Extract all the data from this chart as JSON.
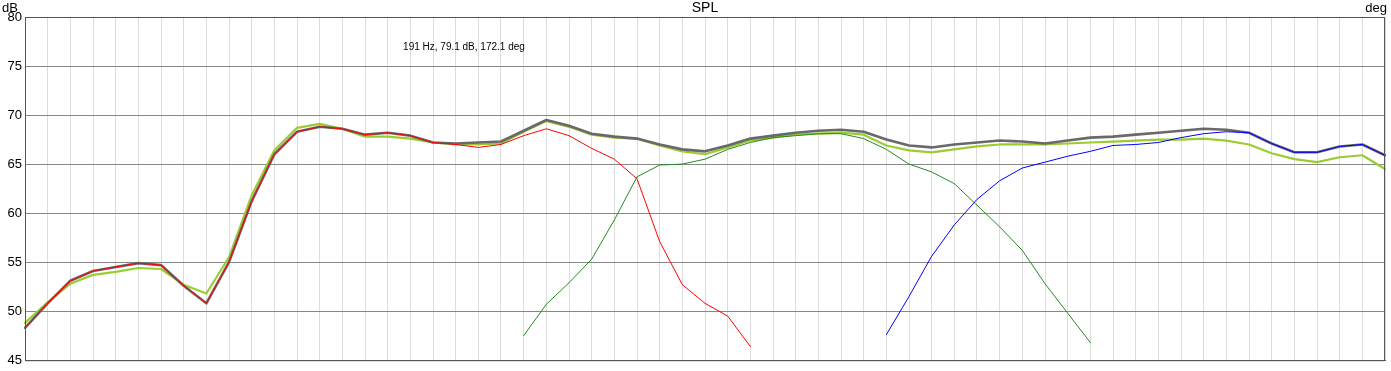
{
  "chart_data": {
    "type": "line",
    "title": "SPL",
    "ylabel": "dB",
    "y2label": "deg",
    "annotations": [
      "191 Hz, 79.1 dB, 172.1 deg"
    ],
    "grid": true,
    "legend": false,
    "tick_labels": "y",
    "marker": "none",
    "line_style": "solid",
    "ylim": [
      45,
      80
    ],
    "categories": [
      null,
      null,
      null,
      null,
      null,
      null,
      null,
      null,
      null,
      null,
      null,
      null,
      null,
      null,
      null,
      null,
      null,
      null,
      null,
      null,
      null,
      null,
      null,
      null,
      null,
      null,
      null,
      null,
      null,
      null,
      null,
      null,
      null,
      null,
      null,
      null,
      null,
      null,
      null,
      null,
      null,
      null,
      null,
      null,
      null,
      null,
      null,
      null,
      null,
      null,
      null,
      null,
      null,
      null,
      null,
      null,
      null,
      null,
      null,
      null,
      null
    ],
    "yticks": [
      45,
      50,
      55,
      60,
      65,
      70,
      75,
      80
    ],
    "series": [
      {
        "color": "#9acd32",
        "values": [
          48.8,
          50.9,
          52.8,
          53.7,
          54.0,
          54.4,
          54.3,
          52.7,
          51.8,
          55.5,
          61.8,
          66.4,
          68.7,
          69.1,
          68.6,
          67.8,
          67.8,
          67.6,
          67.2,
          67.0,
          67.0,
          67.1,
          68.3,
          69.4,
          68.8,
          68.0,
          67.7,
          67.6,
          66.9,
          66.3,
          66.0,
          66.7,
          67.4,
          67.7,
          68.0,
          68.1,
          68.2,
          68.0,
          66.9,
          66.4,
          66.2,
          66.5,
          66.8,
          67.0,
          67.0,
          67.0,
          67.1,
          67.2,
          67.3,
          67.4,
          67.5,
          67.5,
          67.6,
          67.4,
          67.0,
          66.1,
          65.5,
          65.2,
          65.7,
          65.9,
          64.5
        ]
      },
      {
        "color": "#696969",
        "values": [
          48.3,
          50.8,
          53.1,
          54.1,
          54.5,
          54.9,
          54.7,
          52.6,
          50.8,
          55.0,
          61.2,
          66.0,
          68.3,
          68.8,
          68.6,
          68.0,
          68.2,
          67.9,
          67.2,
          67.1,
          67.2,
          67.3,
          68.4,
          69.5,
          68.9,
          68.1,
          67.8,
          67.6,
          67.0,
          66.5,
          66.3,
          66.9,
          67.6,
          67.9,
          68.2,
          68.4,
          68.5,
          68.3,
          67.5,
          66.9,
          66.7,
          67.0,
          67.2,
          67.4,
          67.3,
          67.1,
          67.4,
          67.7,
          67.8,
          68.0,
          68.2,
          68.4,
          68.6,
          68.5,
          68.2,
          67.1,
          66.2,
          66.2,
          66.8,
          67.0,
          65.9
        ]
      },
      {
        "color": "#ff0000",
        "values": [
          48.3,
          50.8,
          53.1,
          54.1,
          54.5,
          54.9,
          54.7,
          52.6,
          50.8,
          55.0,
          61.2,
          66.0,
          68.3,
          68.8,
          68.6,
          68.0,
          68.2,
          67.9,
          67.2,
          67.0,
          66.7,
          67.0,
          67.9,
          68.6,
          67.9,
          66.6,
          65.5,
          63.5,
          57.1,
          52.7,
          50.8,
          49.5,
          46.4,
          null,
          null,
          null,
          null,
          null,
          null,
          null,
          null,
          null,
          null,
          null,
          null,
          null,
          null,
          null,
          null,
          null,
          null,
          null,
          null,
          null,
          null,
          null,
          null,
          null,
          null,
          null,
          null
        ]
      },
      {
        "color": "#228b22",
        "values": [
          null,
          null,
          null,
          null,
          null,
          null,
          null,
          null,
          null,
          null,
          null,
          null,
          null,
          null,
          null,
          null,
          null,
          null,
          null,
          null,
          null,
          null,
          47.5,
          50.7,
          52.9,
          55.3,
          59.3,
          63.7,
          64.9,
          65.0,
          65.5,
          66.5,
          67.2,
          67.7,
          67.9,
          68.1,
          68.1,
          67.6,
          66.5,
          65.0,
          64.2,
          63.0,
          60.8,
          58.6,
          56.2,
          52.8,
          49.8,
          46.8,
          null,
          null,
          null,
          null,
          null,
          null,
          null,
          null,
          null,
          null,
          null,
          null,
          null
        ]
      },
      {
        "color": "#0000ff",
        "values": [
          null,
          null,
          null,
          null,
          null,
          null,
          null,
          null,
          null,
          null,
          null,
          null,
          null,
          null,
          null,
          null,
          null,
          null,
          null,
          null,
          null,
          null,
          null,
          null,
          null,
          null,
          null,
          null,
          null,
          null,
          null,
          null,
          null,
          null,
          null,
          null,
          null,
          null,
          47.6,
          51.5,
          55.6,
          58.8,
          61.4,
          63.3,
          64.6,
          65.2,
          65.8,
          66.3,
          66.9,
          67.0,
          67.2,
          67.7,
          68.1,
          68.3,
          68.2,
          67.1,
          66.2,
          66.2,
          66.8,
          67.0,
          65.9
        ]
      }
    ]
  }
}
